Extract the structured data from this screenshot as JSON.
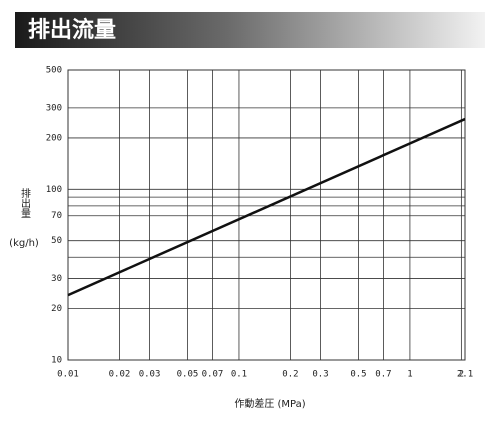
{
  "chart_data": {
    "type": "line",
    "title": "排出流量",
    "x_label": "作動差圧 (MPa)",
    "y_label": "排出量",
    "y_unit": "(kg/h)",
    "log_x": true,
    "log_y": true,
    "grid": true,
    "x": [
      0.01,
      2.1
    ],
    "series": [
      {
        "name": null,
        "color": "#111111",
        "values": [
          24,
          258
        ]
      }
    ],
    "xlim": [
      0.01,
      2.1
    ],
    "xticks": [
      0.01,
      0.02,
      0.03,
      0.05,
      0.07,
      0.1,
      0.2,
      0.3,
      0.5,
      0.7,
      1,
      2,
      2.1
    ],
    "ylim": [
      10,
      500
    ],
    "yticks": [
      10,
      20,
      30,
      50,
      70,
      100,
      200,
      300,
      500
    ],
    "yminor": [
      40,
      80,
      90
    ]
  }
}
